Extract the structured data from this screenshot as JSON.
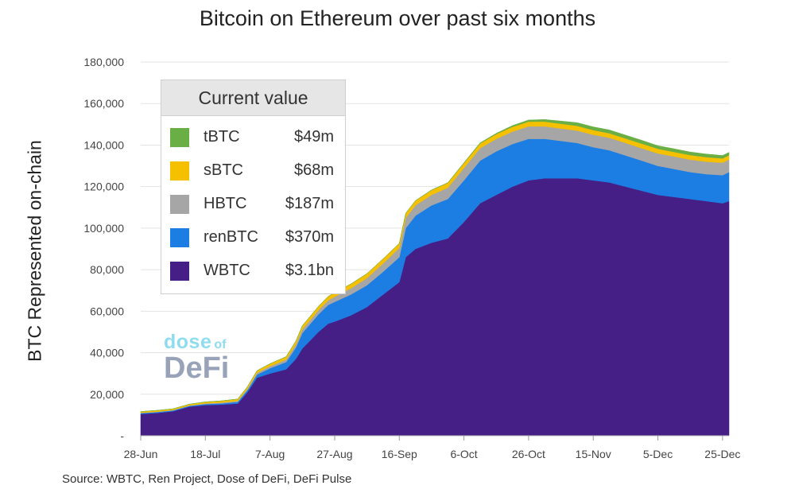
{
  "chart_data": {
    "type": "area",
    "stacked": true,
    "title": "Bitcoin on Ethereum over past six months",
    "ylabel": "BTC Represented on-chain",
    "xlabel": "",
    "ylim": [
      0,
      180000
    ],
    "yticks": [
      0,
      20000,
      40000,
      60000,
      80000,
      100000,
      120000,
      140000,
      160000,
      180000
    ],
    "ytick_labels": [
      "-",
      "20,000",
      "40,000",
      "60,000",
      "80,000",
      "100,000",
      "120,000",
      "140,000",
      "160,000",
      "180,000"
    ],
    "x_day_range": [
      0,
      182
    ],
    "x_ticks": [
      0,
      20,
      40,
      60,
      80,
      100,
      120,
      140,
      160,
      180
    ],
    "x_tick_labels": [
      "28-Jun",
      "18-Jul",
      "7-Aug",
      "27-Aug",
      "16-Sep",
      "6-Oct",
      "26-Oct",
      "15-Nov",
      "5-Dec",
      "25-Dec"
    ],
    "x_days": [
      0,
      5,
      10,
      15,
      20,
      25,
      30,
      33,
      36,
      40,
      45,
      48,
      50,
      55,
      58,
      60,
      65,
      70,
      75,
      80,
      82,
      85,
      90,
      95,
      100,
      105,
      110,
      115,
      120,
      125,
      130,
      135,
      140,
      145,
      150,
      155,
      160,
      165,
      170,
      175,
      180,
      182
    ],
    "series": [
      {
        "name": "WBTC",
        "values": [
          10500,
          11000,
          11800,
          14000,
          14800,
          15000,
          15500,
          21000,
          28000,
          30000,
          32000,
          37000,
          42000,
          50000,
          54000,
          55000,
          58000,
          62000,
          68000,
          74000,
          86000,
          90000,
          93000,
          95000,
          103000,
          112000,
          116000,
          120000,
          123000,
          124000,
          124000,
          124000,
          123000,
          122000,
          120000,
          118000,
          116000,
          115000,
          114000,
          113000,
          112000,
          113000
        ]
      },
      {
        "name": "renBTC",
        "values": [
          400,
          400,
          400,
          400,
          500,
          600,
          800,
          1000,
          1500,
          2500,
          3500,
          5500,
          7500,
          8500,
          9000,
          9500,
          10000,
          10500,
          11000,
          12000,
          14000,
          16000,
          18000,
          19000,
          20000,
          20500,
          21000,
          20500,
          20000,
          19000,
          18000,
          17000,
          16000,
          15500,
          15000,
          14500,
          14000,
          13500,
          13000,
          13000,
          13500,
          14000
        ]
      },
      {
        "name": "HBTC",
        "values": [
          200,
          200,
          200,
          200,
          300,
          400,
          500,
          600,
          800,
          1000,
          1200,
          1500,
          1800,
          2000,
          2200,
          2500,
          3000,
          3500,
          4000,
          4500,
          5000,
          5000,
          5000,
          5500,
          6000,
          6000,
          6000,
          6000,
          6000,
          6000,
          6000,
          6000,
          6000,
          6000,
          6000,
          6000,
          6000,
          6000,
          6000,
          6000,
          6000,
          6000
        ]
      },
      {
        "name": "sBTC",
        "values": [
          600,
          600,
          600,
          600,
          700,
          800,
          900,
          1000,
          1100,
          1200,
          1400,
          1600,
          1700,
          1800,
          1900,
          2000,
          2100,
          2100,
          2200,
          2200,
          2200,
          2200,
          2300,
          2300,
          2300,
          2300,
          2300,
          2300,
          2300,
          2300,
          2300,
          2300,
          2200,
          2200,
          2200,
          2200,
          2200,
          2200,
          2200,
          2200,
          2100,
          2100
        ]
      },
      {
        "name": "tBTC",
        "values": [
          0,
          0,
          0,
          0,
          0,
          0,
          0,
          0,
          0,
          0,
          0,
          0,
          0,
          0,
          0,
          0,
          0,
          0,
          0,
          0,
          0,
          100,
          100,
          100,
          200,
          300,
          400,
          600,
          800,
          1000,
          1300,
          1500,
          1600,
          1600,
          1600,
          1600,
          1500,
          1500,
          1500,
          1500,
          1400,
          1400
        ]
      }
    ],
    "colors": {
      "WBTC": "#451f85",
      "renBTC": "#1c7de3",
      "HBTC": "#a6a6a6",
      "sBTC": "#f5c000",
      "tBTC": "#6aaf45"
    },
    "legend": {
      "title": "Current value",
      "placement": "top-left",
      "entries": [
        {
          "name": "tBTC",
          "value": "$49m",
          "color": "#6aaf45"
        },
        {
          "name": "sBTC",
          "value": "$68m",
          "color": "#f5c000"
        },
        {
          "name": "HBTC",
          "value": "$187m",
          "color": "#a6a6a6"
        },
        {
          "name": "renBTC",
          "value": "$370m",
          "color": "#1c7de3"
        },
        {
          "name": "WBTC",
          "value": "$3.1bn",
          "color": "#451f85"
        }
      ]
    },
    "grid": true
  },
  "source": "Source: WBTC,  Ren Project, Dose of DeFi, DeFi Pulse",
  "logo": {
    "line1": "dose",
    "line1_small": "of",
    "line2": "DeFi"
  }
}
